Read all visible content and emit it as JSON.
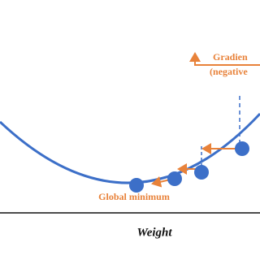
{
  "labels": {
    "gradient": "Gradien",
    "negative": "(negative",
    "minimum": "Global minimum",
    "axis": "Weight"
  }
}
